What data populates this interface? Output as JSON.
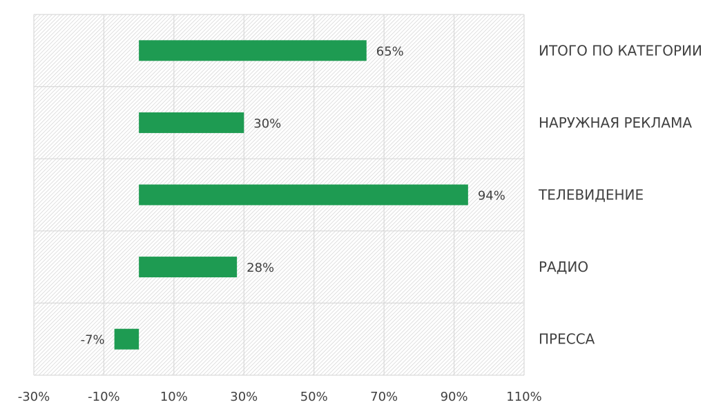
{
  "chart_data": {
    "type": "bar",
    "orientation": "horizontal",
    "categories": [
      "ИТОГО ПО КАТЕГОРИИ",
      "НАРУЖНАЯ РЕКЛАМА",
      "ТЕЛЕВИДЕНИЕ",
      "РАДИО",
      "ПРЕССА"
    ],
    "values": [
      65,
      30,
      94,
      28,
      -7
    ],
    "data_labels": [
      "65%",
      "30%",
      "94%",
      "28%",
      "-7%"
    ],
    "xlim": [
      -30,
      110
    ],
    "x_ticks": [
      -30,
      -10,
      10,
      30,
      50,
      70,
      90,
      110
    ],
    "x_tick_labels": [
      "-30%",
      "-10%",
      "10%",
      "30%",
      "50%",
      "70%",
      "90%",
      "110%"
    ],
    "title": "",
    "xlabel": "",
    "ylabel": "",
    "grid": true,
    "legend": "none",
    "category_label_position": "right",
    "colors": {
      "bar": "#1e9b52",
      "grid": "#d9d9d9",
      "hatch": "#cfcfcf",
      "text": "#404040"
    }
  }
}
